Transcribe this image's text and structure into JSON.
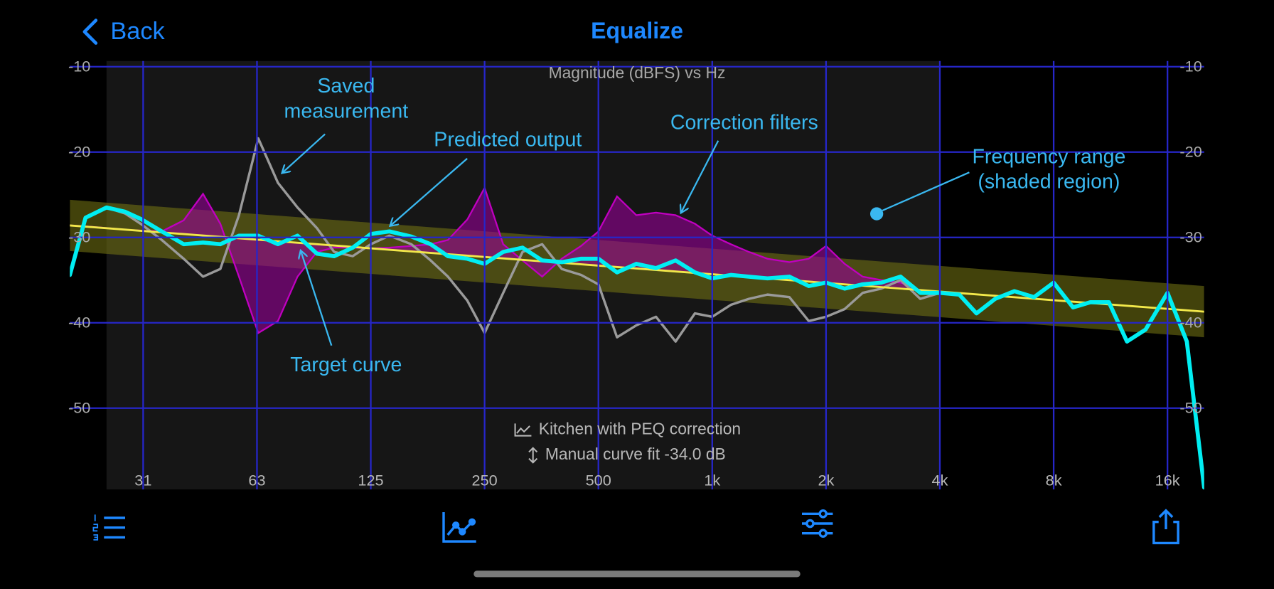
{
  "nav": {
    "back": "Back",
    "title": "Equalize"
  },
  "chart_data": {
    "type": "line",
    "title": "Magnitude (dBFS) vs Hz",
    "xscale": "log",
    "xlim": [
      20,
      20000
    ],
    "ylim": [
      -60,
      -10
    ],
    "xticks": [
      {
        "value": 31.25,
        "label": "31"
      },
      {
        "value": 62.5,
        "label": "63"
      },
      125,
      250,
      500,
      {
        "value": 1000,
        "label": "1k"
      },
      {
        "value": 2000,
        "label": "2k"
      },
      {
        "value": 4000,
        "label": "4k"
      },
      {
        "value": 8000,
        "label": "8k"
      },
      {
        "value": 16000,
        "label": "16k"
      }
    ],
    "yticks": [
      -10,
      -20,
      -30,
      -40,
      -50
    ],
    "grid": true,
    "freq_range": [
      25,
      4000
    ],
    "x": [
      20,
      22,
      25,
      28,
      31,
      35,
      40,
      45,
      50,
      56,
      63,
      71,
      80,
      90,
      100,
      112,
      125,
      140,
      160,
      180,
      200,
      225,
      250,
      280,
      315,
      355,
      400,
      450,
      500,
      560,
      630,
      710,
      800,
      900,
      1000,
      1120,
      1250,
      1400,
      1600,
      1800,
      2000,
      2240,
      2500,
      2800,
      3150,
      3550,
      4000,
      4500,
      5000,
      5600,
      6300,
      7100,
      8000,
      9000,
      10000,
      11200,
      12500,
      14000,
      16000,
      18000,
      20000
    ],
    "series": [
      {
        "color": "#9a9a9a",
        "values": [
          -34.4,
          -27.7,
          -26.5,
          -27.2,
          -28.5,
          -30.3,
          -32.5,
          -34.6,
          -33.7,
          -27.4,
          -18.4,
          -23.6,
          -26.5,
          -28.9,
          -31.7,
          -32.2,
          -30.8,
          -29.8,
          -30.8,
          -32.7,
          -34.6,
          -37.4,
          -41.2,
          -36.5,
          -31.7,
          -30.8,
          -33.7,
          -34.4,
          -35.5,
          -41.7,
          -40.3,
          -39.3,
          -42.2,
          -38.9,
          -39.3,
          -37.9,
          -37.2,
          -36.7,
          -37,
          -39.8,
          -39.3,
          -38.4,
          -36.5,
          -36,
          -35,
          -37.2,
          -36.5,
          -36.7,
          -38.9,
          -37.2,
          -36.3,
          -37,
          -35.3,
          -38.2,
          -37.6,
          -37.6,
          -42.2,
          -40.8,
          -36.5,
          -42.2,
          -59.3
        ]
      },
      {
        "color": "#c000c0",
        "fill": true,
        "values": [
          -28.6,
          -28.7,
          -28.9,
          -29.1,
          -29.2,
          -29.3,
          -28,
          -24.9,
          -28.4,
          -34.6,
          -41.2,
          -39.8,
          -34.6,
          -31.7,
          -31.2,
          -31.2,
          -31.3,
          -31.2,
          -31,
          -30.8,
          -30.3,
          -27.9,
          -24.2,
          -30.8,
          -32.7,
          -34.6,
          -32.5,
          -31,
          -29.3,
          -25.2,
          -27.4,
          -27.1,
          -27.4,
          -28.4,
          -29.8,
          -30.8,
          -31.7,
          -32.5,
          -32.9,
          -32.5,
          -31,
          -33.1,
          -34.6,
          -35,
          -35.3,
          -36.2,
          null,
          null,
          null,
          null,
          null,
          null,
          null,
          null,
          null,
          null,
          null,
          null,
          null,
          null,
          null
        ]
      },
      {
        "color": "#00eef2",
        "values": [
          -34.4,
          -27.7,
          -26.5,
          -27,
          -27.9,
          -29.3,
          -30.8,
          -30.6,
          -30.8,
          -29.8,
          -29.8,
          -30.8,
          -29.8,
          -31.9,
          -32.2,
          -31.2,
          -29.6,
          -29.3,
          -29.9,
          -30.8,
          -32.2,
          -32.5,
          -33.1,
          -31.7,
          -31.2,
          -32.7,
          -32.9,
          -32.5,
          -32.5,
          -34.1,
          -33.1,
          -33.6,
          -32.7,
          -34.1,
          -34.8,
          -34.4,
          -34.6,
          -34.8,
          -34.6,
          -35.7,
          -35.3,
          -36,
          -35.5,
          -35.3,
          -34.6,
          -36.5,
          -36.5,
          -36.7,
          -38.9,
          -37.2,
          -36.3,
          -37,
          -35.3,
          -38.2,
          -37.6,
          -37.6,
          -42.2,
          -40.8,
          -36.5,
          -42.2,
          -59.3
        ]
      },
      {
        "color": "#f2e84a",
        "band": 3,
        "x": [
          20,
          20000
        ],
        "values": [
          -28.6,
          -38.7
        ]
      }
    ],
    "annotations": [
      {
        "lines": [
          "Saved",
          "measurement"
        ]
      },
      {
        "lines": [
          "Predicted output"
        ]
      },
      {
        "lines": [
          "Correction filters"
        ]
      },
      {
        "lines": [
          "Frequency range",
          "(shaded region)"
        ]
      },
      {
        "lines": [
          "Target curve"
        ]
      }
    ],
    "captions": [
      "Kitchen with PEQ correction",
      "Manual curve fit -34.0 dB"
    ]
  }
}
